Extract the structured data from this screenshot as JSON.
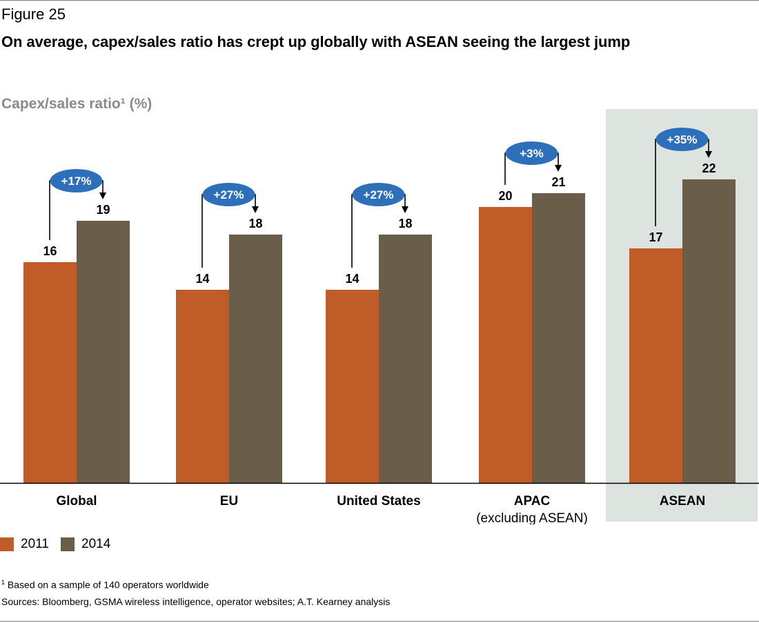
{
  "figure": {
    "label": "Figure 25",
    "title": "On average, capex/sales ratio has crept up globally with ASEAN seeing the largest jump"
  },
  "colors": {
    "series_2011": "#c05c28",
    "series_2014": "#6a5e4b",
    "bubble": "#2e6fba",
    "highlight": "#dde3df",
    "axis_title": "#8a8a8a"
  },
  "chart_data": {
    "type": "bar",
    "title": "Capex/sales ratio¹ (%)",
    "ylabel": "Capex/sales ratio (%)",
    "xlabel": "",
    "ylim": [
      0,
      22
    ],
    "grid": false,
    "legend_position": "bottom-left",
    "highlighted_category": "ASEAN",
    "categories": [
      {
        "label": "Global",
        "sublabel": ""
      },
      {
        "label": "EU",
        "sublabel": ""
      },
      {
        "label": "United States",
        "sublabel": ""
      },
      {
        "label": "APAC",
        "sublabel": "(excluding ASEAN)"
      },
      {
        "label": "ASEAN",
        "sublabel": ""
      }
    ],
    "series": [
      {
        "name": "2011",
        "values": [
          16,
          14,
          14,
          20,
          17
        ]
      },
      {
        "name": "2014",
        "values": [
          19,
          18,
          18,
          21,
          22
        ]
      }
    ],
    "changes": [
      "+17%",
      "+27%",
      "+27%",
      "+3%",
      "+35%"
    ]
  },
  "legend": [
    {
      "label": "2011"
    },
    {
      "label": "2014"
    }
  ],
  "notes": {
    "footnote_mark": "1",
    "footnote": "Based on a sample of 140 operators worldwide",
    "sources": "Sources: Bloomberg, GSMA wireless intelligence, operator websites; A.T. Kearney analysis"
  }
}
